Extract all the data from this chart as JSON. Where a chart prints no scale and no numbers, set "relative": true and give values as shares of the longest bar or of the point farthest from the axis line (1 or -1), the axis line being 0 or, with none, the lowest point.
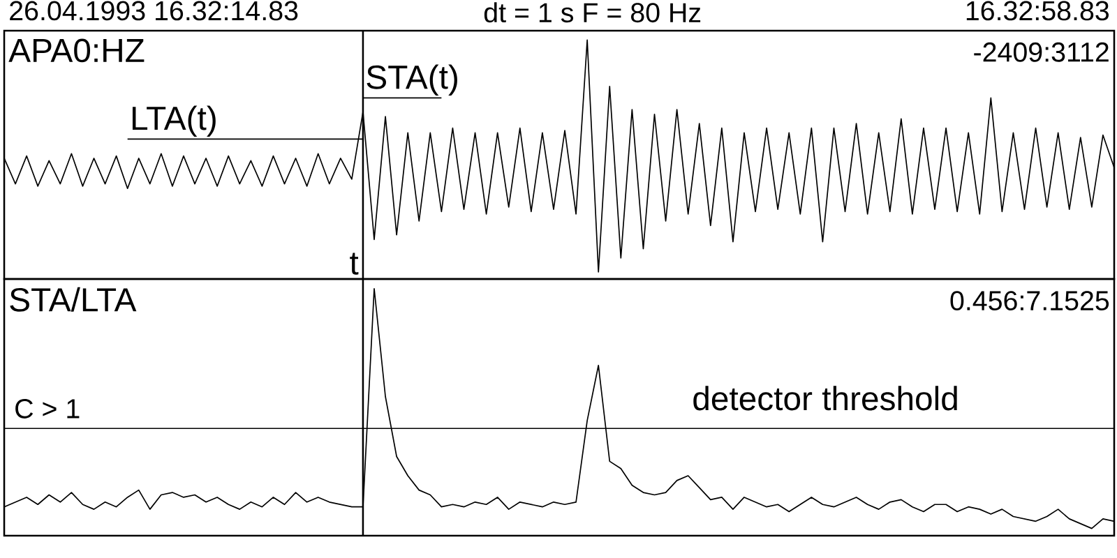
{
  "chart_data": [
    {
      "type": "line",
      "title": "APA0:HZ",
      "subtitle": "dt = 1 s    F = 80 Hz",
      "relative": true,
      "categories": [
        null,
        null,
        null,
        null,
        null,
        null,
        null,
        null,
        null,
        null,
        null,
        null,
        null,
        null,
        null,
        null,
        null,
        null,
        null,
        null,
        null,
        null,
        null,
        null,
        null,
        null,
        null,
        null,
        null,
        null,
        null,
        null,
        null,
        null,
        null,
        null,
        null,
        null,
        null,
        null,
        null,
        null,
        null,
        null,
        null,
        null,
        null,
        null,
        null,
        null,
        null,
        null,
        null,
        null,
        null,
        null,
        null,
        null,
        null,
        null,
        null,
        null,
        null,
        null,
        null,
        null,
        null,
        null,
        null,
        null,
        null,
        null,
        null,
        null,
        null,
        null,
        null,
        null,
        null,
        null,
        null,
        null,
        null,
        null,
        null,
        null,
        null,
        null,
        null,
        null,
        null,
        null,
        null,
        null,
        null,
        null,
        null,
        null,
        null,
        null
      ],
      "annotations": [
        "26.04.1993  16.32:14.83",
        "16.32:58.83",
        "-2409:3112",
        "t"
      ],
      "series": [
        {
          "color": "#000000",
          "values": [
            0.49,
            0.38,
            0.5,
            0.37,
            0.48,
            0.38,
            0.51,
            0.37,
            0.49,
            0.38,
            0.5,
            0.36,
            0.49,
            0.38,
            0.51,
            0.37,
            0.5,
            0.38,
            0.49,
            0.37,
            0.5,
            0.38,
            0.48,
            0.37,
            0.5,
            0.38,
            0.49,
            0.37,
            0.51,
            0.38,
            0.49,
            0.4,
            0.69,
            0.14,
            0.67,
            0.16,
            0.6,
            0.22,
            0.6,
            0.26,
            0.62,
            0.27,
            0.6,
            0.25,
            0.6,
            0.28,
            0.62,
            0.26,
            0.6,
            0.27,
            0.61,
            0.25,
            1.0,
            0.0,
            0.8,
            0.06,
            0.7,
            0.1,
            0.68,
            0.22,
            0.7,
            0.25,
            0.64,
            0.2,
            0.62,
            0.13,
            0.6,
            0.26,
            0.62,
            0.27,
            0.6,
            0.25,
            0.62,
            0.13,
            0.62,
            0.26,
            0.64,
            0.25,
            0.6,
            0.26,
            0.66,
            0.25,
            0.62,
            0.27,
            0.62,
            0.26,
            0.6,
            0.25,
            0.75,
            0.26,
            0.6,
            0.27,
            0.62,
            0.28,
            0.6,
            0.27,
            0.58,
            0.28,
            0.59,
            0.45
          ]
        },
        {
          "name": "LTA(t)",
          "color": "#000000",
          "values": [
            null,
            null,
            null,
            null,
            null,
            null,
            null,
            null,
            null,
            null,
            null,
            0.573,
            0.573,
            0.573,
            0.573,
            0.573,
            0.573,
            0.573,
            0.573,
            0.573,
            0.573,
            0.573,
            0.573,
            0.573,
            0.573,
            0.573,
            0.573,
            0.573,
            0.573,
            0.573,
            0.573,
            0.573,
            0.573,
            null,
            null,
            null,
            null,
            null,
            null,
            null,
            null,
            null,
            null,
            null,
            null,
            null,
            null,
            null,
            null,
            null,
            null,
            null,
            null,
            null,
            null,
            null,
            null,
            null,
            null,
            null,
            null,
            null,
            null,
            null,
            null,
            null,
            null,
            null,
            null,
            null,
            null,
            null,
            null,
            null,
            null,
            null,
            null,
            null,
            null,
            null,
            null,
            null,
            null,
            null,
            null,
            null,
            null,
            null,
            null,
            null,
            null,
            null,
            null,
            null,
            null,
            null,
            null,
            null,
            null,
            null
          ]
        },
        {
          "name": "STA(t)",
          "color": "#000000",
          "values": [
            null,
            null,
            null,
            null,
            null,
            null,
            null,
            null,
            null,
            null,
            null,
            null,
            null,
            null,
            null,
            null,
            null,
            null,
            null,
            null,
            null,
            null,
            null,
            null,
            null,
            null,
            null,
            null,
            null,
            null,
            null,
            null,
            0.75,
            0.75,
            0.75,
            0.75,
            0.75,
            0.75,
            0.75,
            0.75,
            null,
            null,
            null,
            null,
            null,
            null,
            null,
            null,
            null,
            null,
            null,
            null,
            null,
            null,
            null,
            null,
            null,
            null,
            null,
            null,
            null,
            null,
            null,
            null,
            null,
            null,
            null,
            null,
            null,
            null,
            null,
            null,
            null,
            null,
            null,
            null,
            null,
            null,
            null,
            null,
            null,
            null,
            null,
            null,
            null,
            null,
            null,
            null,
            null,
            null,
            null,
            null,
            null,
            null,
            null,
            null,
            null,
            null,
            null,
            null
          ]
        }
      ]
    },
    {
      "type": "line",
      "title": "STA/LTA",
      "relative": true,
      "categories": [
        null,
        null,
        null,
        null,
        null,
        null,
        null,
        null,
        null,
        null,
        null,
        null,
        null,
        null,
        null,
        null,
        null,
        null,
        null,
        null,
        null,
        null,
        null,
        null,
        null,
        null,
        null,
        null,
        null,
        null,
        null,
        null,
        null,
        null,
        null,
        null,
        null,
        null,
        null,
        null,
        null,
        null,
        null,
        null,
        null,
        null,
        null,
        null,
        null,
        null,
        null,
        null,
        null,
        null,
        null,
        null,
        null,
        null,
        null,
        null,
        null,
        null,
        null,
        null,
        null,
        null,
        null,
        null,
        null,
        null,
        null,
        null,
        null,
        null,
        null,
        null,
        null,
        null,
        null,
        null,
        null,
        null,
        null,
        null,
        null,
        null,
        null,
        null,
        null,
        null,
        null,
        null,
        null,
        null,
        null,
        null,
        null,
        null,
        null,
        null
      ],
      "annotations": [
        "0.456:7.1525",
        "C > 1"
      ],
      "ref_lines": [
        {
          "axis": "y",
          "value": 0.417,
          "label": "detector threshold"
        }
      ],
      "color": "#000000",
      "values": [
        0.09,
        0.11,
        0.13,
        0.1,
        0.14,
        0.11,
        0.15,
        0.1,
        0.08,
        0.11,
        0.09,
        0.13,
        0.16,
        0.08,
        0.14,
        0.15,
        0.13,
        0.14,
        0.11,
        0.13,
        0.1,
        0.08,
        0.11,
        0.09,
        0.13,
        0.1,
        0.15,
        0.11,
        0.13,
        0.11,
        0.1,
        0.09,
        0.09,
        1.0,
        0.55,
        0.3,
        0.22,
        0.16,
        0.14,
        0.09,
        0.1,
        0.09,
        0.11,
        0.1,
        0.13,
        0.08,
        0.11,
        0.1,
        0.09,
        0.11,
        0.1,
        0.11,
        0.45,
        0.68,
        0.28,
        0.25,
        0.18,
        0.15,
        0.14,
        0.15,
        0.2,
        0.22,
        0.17,
        0.12,
        0.13,
        0.08,
        0.13,
        0.11,
        0.09,
        0.1,
        0.07,
        0.1,
        0.13,
        0.1,
        0.09,
        0.11,
        0.13,
        0.1,
        0.08,
        0.11,
        0.12,
        0.09,
        0.07,
        0.1,
        0.1,
        0.07,
        0.09,
        0.08,
        0.06,
        0.08,
        0.05,
        0.04,
        0.03,
        0.05,
        0.08,
        0.04,
        0.02,
        0.0,
        0.04,
        0.03
      ]
    }
  ]
}
